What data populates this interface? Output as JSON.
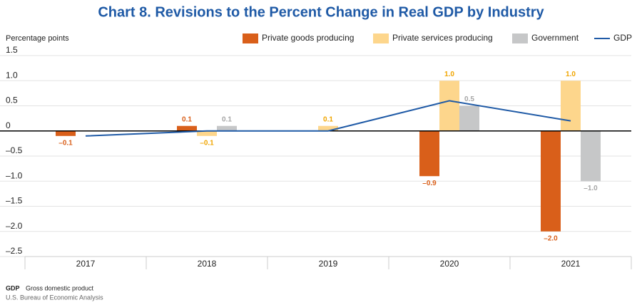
{
  "chart_data": {
    "type": "bar",
    "title": "Chart 8. Revisions to the Percent Change in Real GDP by Industry",
    "y_label": "Percentage points",
    "categories": [
      "2017",
      "2018",
      "2019",
      "2020",
      "2021"
    ],
    "series": [
      {
        "name": "Private goods producing",
        "type": "bar",
        "color": "#d95f1a",
        "label_color": "#d95f1a",
        "values": [
          -0.1,
          0.1,
          null,
          -0.9,
          -2.0
        ],
        "value_labels": [
          "–0.1",
          "0.1",
          null,
          "–0.9",
          "–2.0"
        ]
      },
      {
        "name": "Private services producing",
        "type": "bar",
        "color": "#fdd68c",
        "label_color": "#f0a500",
        "values": [
          null,
          -0.1,
          0.1,
          1.0,
          1.0
        ],
        "value_labels": [
          null,
          "–0.1",
          "0.1",
          "1.0",
          "1.0"
        ]
      },
      {
        "name": "Government",
        "type": "bar",
        "color": "#c6c7c8",
        "label_color": "#a6a6a6",
        "values": [
          null,
          0.1,
          null,
          0.5,
          -1.0
        ],
        "value_labels": [
          null,
          "0.1",
          null,
          "0.5",
          "–1.0"
        ]
      },
      {
        "name": "GDP",
        "type": "line",
        "color": "#1f5aa6",
        "values": [
          -0.1,
          0.0,
          0.0,
          0.6,
          0.2
        ]
      }
    ],
    "ylim": [
      -2.5,
      1.5
    ],
    "yticks": [
      {
        "value": 1.5,
        "label": "1.5"
      },
      {
        "value": 1.0,
        "label": "1.0"
      },
      {
        "value": 0.5,
        "label": "0.5"
      },
      0,
      {
        "value": -0.5,
        "label": "–0.5"
      },
      {
        "value": -1.0,
        "label": "–1.0"
      },
      {
        "value": -1.5,
        "label": "–1.5"
      },
      {
        "value": -2.0,
        "label": "–2.0"
      },
      {
        "value": -2.5,
        "label": "–2.5"
      }
    ],
    "grid": true
  },
  "notes": [
    {
      "abbr": "GDP",
      "text": "Gross domestic product"
    }
  ],
  "source": "U.S. Bureau of Economic Analysis"
}
